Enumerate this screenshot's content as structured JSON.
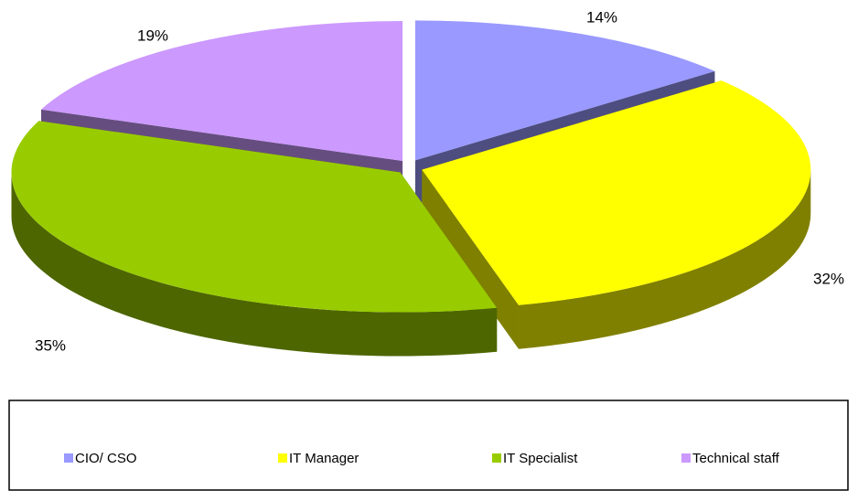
{
  "chart_data": {
    "type": "pie",
    "categories": [
      "CIO/ CSO",
      "IT Manager",
      "IT Specialist",
      "Technical staff"
    ],
    "values": [
      14,
      32,
      35,
      19
    ],
    "value_labels": [
      "14%",
      "32%",
      "35%",
      "19%"
    ],
    "colors": [
      "#9999ff",
      "#ffff00",
      "#99cc00",
      "#cc99ff"
    ],
    "legend": "bottom"
  }
}
